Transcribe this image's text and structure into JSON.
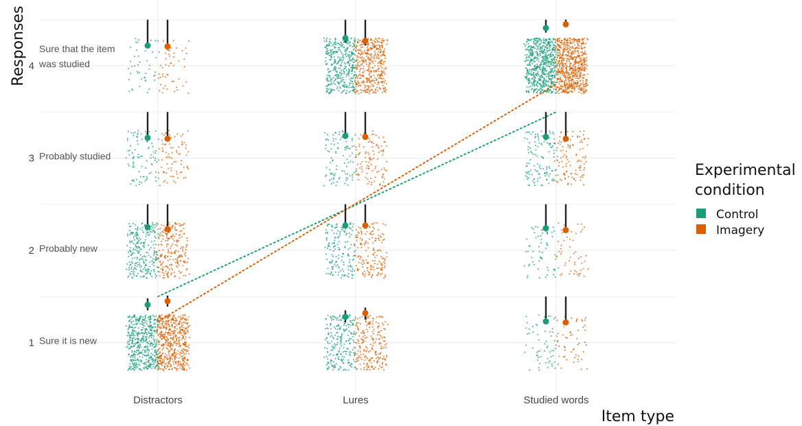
{
  "chart_data": {
    "type": "scatter",
    "title": "",
    "xlabel": "Item type",
    "ylabel": "Responses",
    "x_categories": [
      "Distractors",
      "Lures",
      "Studied words"
    ],
    "y_ticks": [
      1,
      2,
      3,
      4
    ],
    "y_tick_annotations": [
      "Sure it is new",
      "Probably new",
      "Probably studied",
      "Sure that the item was studied"
    ],
    "ylim": [
      0.55,
      4.55
    ],
    "grid": true,
    "legend": {
      "title": "Experimental condition",
      "position": "right",
      "items": [
        {
          "label": "Control",
          "color": "#1b9e77"
        },
        {
          "label": "Imagery",
          "color": "#d95f02"
        }
      ]
    },
    "series": [
      {
        "name": "Control",
        "color": "#1b9e77",
        "points": [
          {
            "category": "Distractors",
            "response": 1,
            "proportion": 0.55
          },
          {
            "category": "Distractors",
            "response": 2,
            "proportion": 0.29
          },
          {
            "category": "Distractors",
            "response": 3,
            "proportion": 0.1
          },
          {
            "category": "Distractors",
            "response": 4,
            "proportion": 0.05
          },
          {
            "category": "Lures",
            "response": 1,
            "proportion": 0.26
          },
          {
            "category": "Lures",
            "response": 2,
            "proportion": 0.18
          },
          {
            "category": "Lures",
            "response": 3,
            "proportion": 0.11
          },
          {
            "category": "Lures",
            "response": 4,
            "proportion": 0.45
          },
          {
            "category": "Studied words",
            "response": 1,
            "proportion": 0.07
          },
          {
            "category": "Studied words",
            "response": 2,
            "proportion": 0.07
          },
          {
            "category": "Studied words",
            "response": 3,
            "proportion": 0.14
          },
          {
            "category": "Studied words",
            "response": 4,
            "proportion": 0.72
          }
        ]
      },
      {
        "name": "Imagery",
        "color": "#d95f02",
        "points": [
          {
            "category": "Distractors",
            "response": 1,
            "proportion": 0.6
          },
          {
            "category": "Distractors",
            "response": 2,
            "proportion": 0.25
          },
          {
            "category": "Distractors",
            "response": 3,
            "proportion": 0.09
          },
          {
            "category": "Distractors",
            "response": 4,
            "proportion": 0.06
          },
          {
            "category": "Lures",
            "response": 1,
            "proportion": 0.24
          },
          {
            "category": "Lures",
            "response": 2,
            "proportion": 0.18
          },
          {
            "category": "Lures",
            "response": 3,
            "proportion": 0.12
          },
          {
            "category": "Lures",
            "response": 4,
            "proportion": 0.46
          },
          {
            "category": "Studied words",
            "response": 1,
            "proportion": 0.06
          },
          {
            "category": "Studied words",
            "response": 2,
            "proportion": 0.06
          },
          {
            "category": "Studied words",
            "response": 3,
            "proportion": 0.12
          },
          {
            "category": "Studied words",
            "response": 4,
            "proportion": 0.76
          }
        ]
      }
    ],
    "summary": [
      {
        "series": "Control",
        "category": "Distractors",
        "response": 1,
        "mean": 1.41,
        "lower": 1.35,
        "upper": 1.48
      },
      {
        "series": "Control",
        "category": "Distractors",
        "response": 2,
        "mean": 2.25,
        "lower": 2.23,
        "upper": 2.5
      },
      {
        "series": "Control",
        "category": "Distractors",
        "response": 3,
        "mean": 3.22,
        "lower": 3.2,
        "upper": 3.5
      },
      {
        "series": "Control",
        "category": "Distractors",
        "response": 4,
        "mean": 4.22,
        "lower": 4.2,
        "upper": 4.5
      },
      {
        "series": "Control",
        "category": "Lures",
        "response": 1,
        "mean": 1.28,
        "lower": 1.22,
        "upper": 1.35
      },
      {
        "series": "Control",
        "category": "Lures",
        "response": 2,
        "mean": 2.27,
        "lower": 2.24,
        "upper": 2.5
      },
      {
        "series": "Control",
        "category": "Lures",
        "response": 3,
        "mean": 3.24,
        "lower": 3.21,
        "upper": 3.5
      },
      {
        "series": "Control",
        "category": "Lures",
        "response": 4,
        "mean": 4.3,
        "lower": 4.25,
        "upper": 4.5
      },
      {
        "series": "Control",
        "category": "Studied words",
        "response": 1,
        "mean": 1.23,
        "lower": 1.2,
        "upper": 1.5
      },
      {
        "series": "Control",
        "category": "Studied words",
        "response": 2,
        "mean": 2.24,
        "lower": 2.21,
        "upper": 2.5
      },
      {
        "series": "Control",
        "category": "Studied words",
        "response": 3,
        "mean": 3.23,
        "lower": 3.2,
        "upper": 3.5
      },
      {
        "series": "Control",
        "category": "Studied words",
        "response": 4,
        "mean": 4.41,
        "lower": 4.36,
        "upper": 4.5
      },
      {
        "series": "Imagery",
        "category": "Distractors",
        "response": 1,
        "mean": 1.45,
        "lower": 1.39,
        "upper": 1.51
      },
      {
        "series": "Imagery",
        "category": "Distractors",
        "response": 2,
        "mean": 2.23,
        "lower": 2.21,
        "upper": 2.5
      },
      {
        "series": "Imagery",
        "category": "Distractors",
        "response": 3,
        "mean": 3.21,
        "lower": 3.19,
        "upper": 3.5
      },
      {
        "series": "Imagery",
        "category": "Distractors",
        "response": 4,
        "mean": 4.21,
        "lower": 4.19,
        "upper": 4.5
      },
      {
        "series": "Imagery",
        "category": "Lures",
        "response": 1,
        "mean": 1.32,
        "lower": 1.25,
        "upper": 1.38
      },
      {
        "series": "Imagery",
        "category": "Lures",
        "response": 2,
        "mean": 2.27,
        "lower": 2.24,
        "upper": 2.5
      },
      {
        "series": "Imagery",
        "category": "Lures",
        "response": 3,
        "mean": 3.23,
        "lower": 3.2,
        "upper": 3.5
      },
      {
        "series": "Imagery",
        "category": "Lures",
        "response": 4,
        "mean": 4.27,
        "lower": 4.22,
        "upper": 4.5
      },
      {
        "series": "Imagery",
        "category": "Studied words",
        "response": 1,
        "mean": 1.22,
        "lower": 1.19,
        "upper": 1.5
      },
      {
        "series": "Imagery",
        "category": "Studied words",
        "response": 2,
        "mean": 2.22,
        "lower": 2.19,
        "upper": 2.5
      },
      {
        "series": "Imagery",
        "category": "Studied words",
        "response": 3,
        "mean": 3.21,
        "lower": 3.18,
        "upper": 3.5
      },
      {
        "series": "Imagery",
        "category": "Studied words",
        "response": 4,
        "mean": 4.45,
        "lower": 4.42,
        "upper": 4.5
      }
    ],
    "trend_lines": [
      {
        "series": "Control",
        "from": {
          "category": "Distractors",
          "response": 1.5
        },
        "to": {
          "category": "Studied words",
          "response": 3.5
        },
        "style": "dotted"
      },
      {
        "series": "Imagery",
        "from": {
          "category": "Distractors",
          "response": 1.23
        },
        "to": {
          "category": "Studied words",
          "response": 3.8
        },
        "style": "dotted"
      }
    ]
  }
}
